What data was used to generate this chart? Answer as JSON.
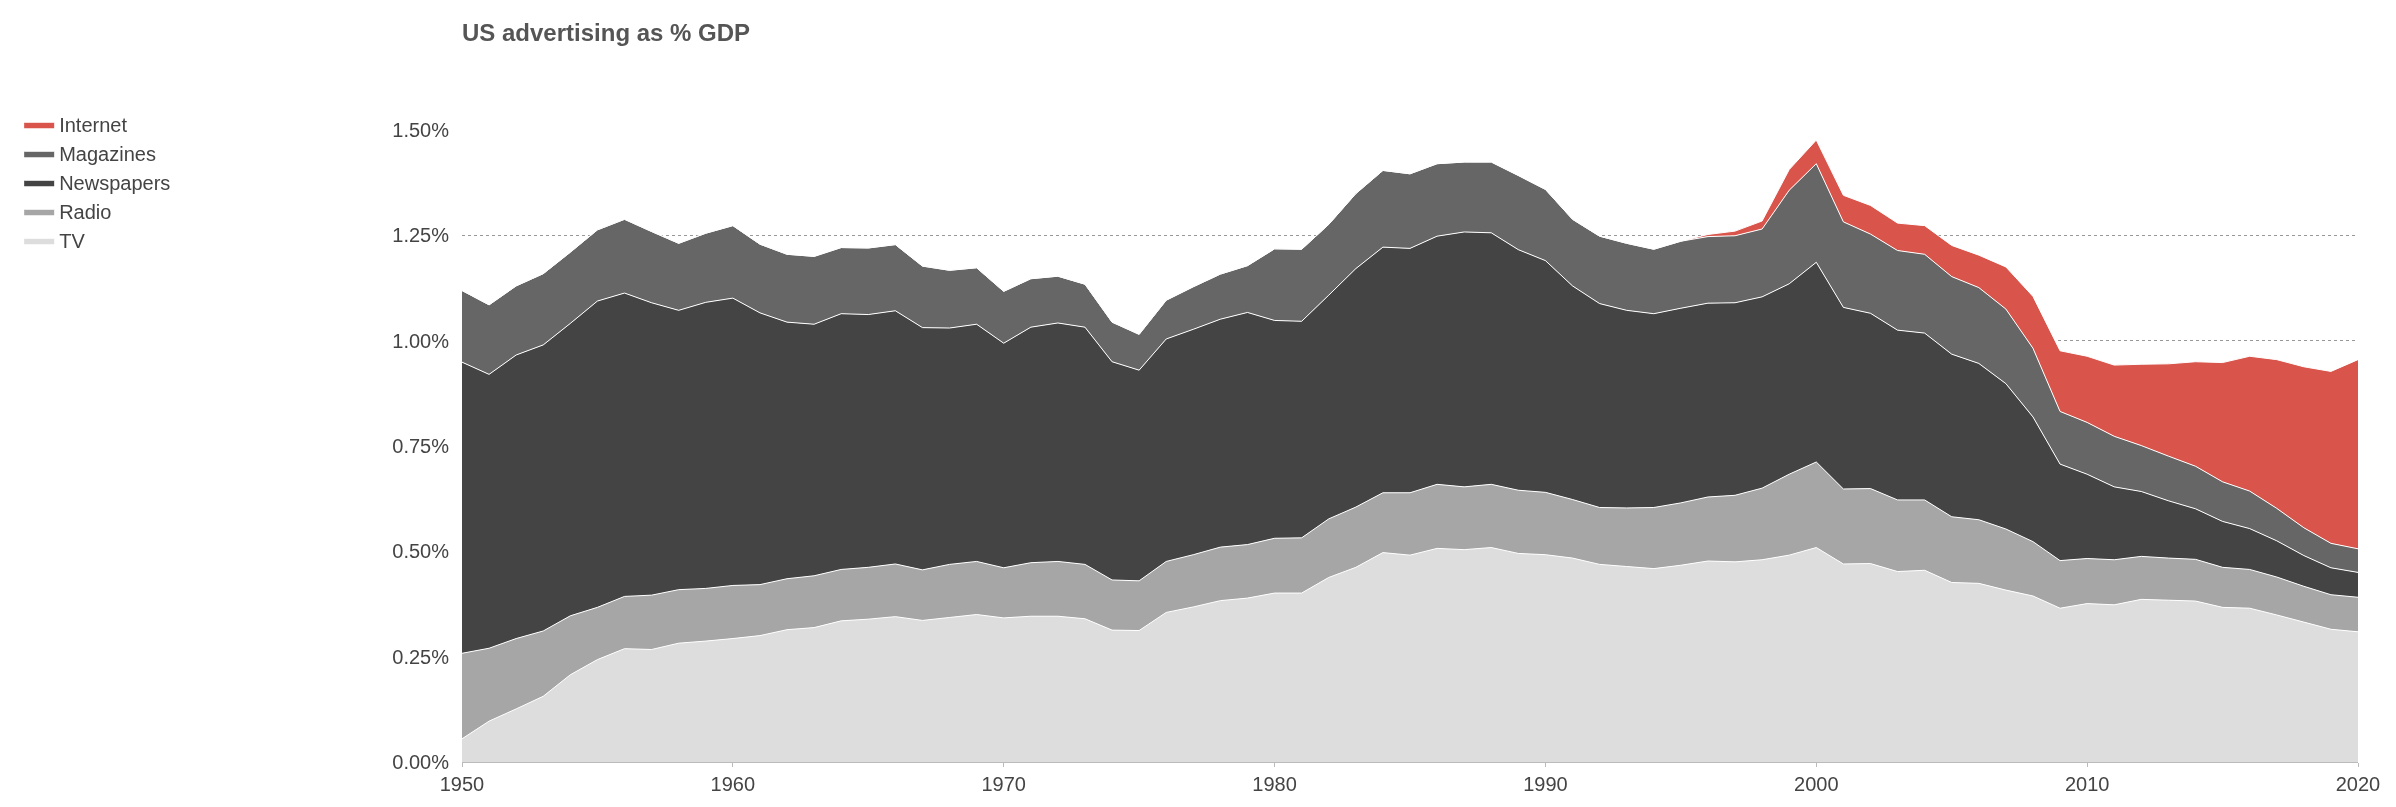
{
  "chart_data": {
    "type": "area",
    "stacked": true,
    "title": "US advertising as % GDP",
    "x": [
      1950,
      1951,
      1952,
      1953,
      1954,
      1955,
      1956,
      1957,
      1958,
      1959,
      1960,
      1961,
      1962,
      1963,
      1964,
      1965,
      1966,
      1967,
      1968,
      1969,
      1970,
      1971,
      1972,
      1973,
      1974,
      1975,
      1976,
      1977,
      1978,
      1979,
      1980,
      1981,
      1982,
      1983,
      1984,
      1985,
      1986,
      1987,
      1988,
      1989,
      1990,
      1991,
      1992,
      1993,
      1994,
      1995,
      1996,
      1997,
      1998,
      1999,
      2000,
      2001,
      2002,
      2003,
      2004,
      2005,
      2006,
      2007,
      2008,
      2009,
      2010,
      2011,
      2012,
      2013,
      2014,
      2015,
      2016,
      2017,
      2018,
      2019,
      2020
    ],
    "series": [
      {
        "name": "TV",
        "color": "#dddddd",
        "values": [
          0.055,
          0.097,
          0.126,
          0.156,
          0.207,
          0.243,
          0.269,
          0.267,
          0.282,
          0.287,
          0.293,
          0.3,
          0.314,
          0.319,
          0.335,
          0.339,
          0.345,
          0.336,
          0.343,
          0.35,
          0.342,
          0.346,
          0.346,
          0.34,
          0.313,
          0.312,
          0.355,
          0.368,
          0.383,
          0.389,
          0.401,
          0.401,
          0.438,
          0.462,
          0.497,
          0.491,
          0.507,
          0.504,
          0.509,
          0.495,
          0.492,
          0.484,
          0.469,
          0.464,
          0.459,
          0.467,
          0.477,
          0.475,
          0.48,
          0.491,
          0.509,
          0.47,
          0.471,
          0.452,
          0.455,
          0.426,
          0.424,
          0.408,
          0.394,
          0.365,
          0.376,
          0.373,
          0.386,
          0.384,
          0.382,
          0.367,
          0.365,
          0.349,
          0.332,
          0.315,
          0.309
        ]
      },
      {
        "name": "Radio",
        "color": "#a6a6a6",
        "values": [
          0.203,
          0.173,
          0.167,
          0.155,
          0.14,
          0.124,
          0.124,
          0.129,
          0.127,
          0.125,
          0.126,
          0.121,
          0.121,
          0.123,
          0.122,
          0.123,
          0.125,
          0.12,
          0.126,
          0.126,
          0.119,
          0.127,
          0.13,
          0.129,
          0.119,
          0.118,
          0.121,
          0.124,
          0.127,
          0.127,
          0.13,
          0.131,
          0.139,
          0.143,
          0.142,
          0.148,
          0.152,
          0.149,
          0.15,
          0.15,
          0.148,
          0.139,
          0.135,
          0.139,
          0.145,
          0.148,
          0.152,
          0.158,
          0.17,
          0.192,
          0.203,
          0.178,
          0.178,
          0.17,
          0.167,
          0.156,
          0.151,
          0.145,
          0.129,
          0.113,
          0.107,
          0.107,
          0.102,
          0.1,
          0.099,
          0.095,
          0.092,
          0.09,
          0.085,
          0.082,
          0.082
        ]
      },
      {
        "name": "Newspapers",
        "color": "#444444",
        "values": [
          0.691,
          0.65,
          0.673,
          0.679,
          0.694,
          0.727,
          0.72,
          0.694,
          0.663,
          0.679,
          0.682,
          0.645,
          0.609,
          0.597,
          0.607,
          0.6,
          0.601,
          0.575,
          0.561,
          0.563,
          0.533,
          0.559,
          0.566,
          0.563,
          0.518,
          0.5,
          0.528,
          0.535,
          0.541,
          0.551,
          0.517,
          0.514,
          0.531,
          0.566,
          0.583,
          0.58,
          0.589,
          0.605,
          0.597,
          0.571,
          0.55,
          0.507,
          0.484,
          0.469,
          0.46,
          0.462,
          0.46,
          0.457,
          0.454,
          0.452,
          0.474,
          0.431,
          0.416,
          0.403,
          0.396,
          0.386,
          0.371,
          0.345,
          0.296,
          0.229,
          0.2,
          0.173,
          0.154,
          0.136,
          0.12,
          0.109,
          0.097,
          0.086,
          0.073,
          0.064,
          0.059
        ]
      },
      {
        "name": "Magazines",
        "color": "#666666",
        "values": [
          0.17,
          0.165,
          0.164,
          0.169,
          0.169,
          0.169,
          0.175,
          0.169,
          0.159,
          0.164,
          0.172,
          0.163,
          0.161,
          0.161,
          0.157,
          0.158,
          0.157,
          0.146,
          0.137,
          0.134,
          0.123,
          0.115,
          0.111,
          0.102,
          0.094,
          0.085,
          0.092,
          0.101,
          0.107,
          0.111,
          0.17,
          0.171,
          0.168,
          0.178,
          0.182,
          0.177,
          0.172,
          0.166,
          0.168,
          0.176,
          0.169,
          0.158,
          0.16,
          0.159,
          0.153,
          0.159,
          0.158,
          0.159,
          0.161,
          0.222,
          0.234,
          0.203,
          0.188,
          0.189,
          0.187,
          0.184,
          0.18,
          0.177,
          0.163,
          0.125,
          0.123,
          0.12,
          0.109,
          0.106,
          0.101,
          0.094,
          0.089,
          0.077,
          0.066,
          0.058,
          0.056
        ]
      },
      {
        "name": "Internet",
        "color": "#d9544a",
        "values": [
          0,
          0,
          0,
          0,
          0,
          0,
          0,
          0,
          0,
          0,
          0,
          0,
          0,
          0,
          0,
          0,
          0,
          0,
          0,
          0,
          0,
          0,
          0,
          0,
          0,
          0,
          0,
          0,
          0,
          0,
          0,
          0,
          0,
          0,
          0,
          0,
          0,
          0,
          0,
          0,
          0,
          0,
          0,
          0,
          0,
          0,
          0.005,
          0.011,
          0.019,
          0.049,
          0.056,
          0.063,
          0.068,
          0.065,
          0.068,
          0.074,
          0.077,
          0.1,
          0.123,
          0.144,
          0.157,
          0.169,
          0.193,
          0.219,
          0.248,
          0.283,
          0.32,
          0.353,
          0.382,
          0.408,
          0.449
        ]
      }
    ],
    "xlim": [
      1950,
      2020
    ],
    "xticks": [
      1950,
      1960,
      1970,
      1980,
      1990,
      2000,
      2010,
      2020
    ],
    "ylim": [
      0,
      1.5
    ],
    "yticks": [
      {
        "value": 0,
        "label": "0.00%"
      },
      {
        "value": 0.25,
        "label": "0.25%"
      },
      {
        "value": 0.5,
        "label": "0.50%"
      },
      {
        "value": 0.75,
        "label": "0.75%"
      },
      {
        "value": 1.0,
        "label": "1.00%"
      },
      {
        "value": 1.25,
        "label": "1.25%"
      },
      {
        "value": 1.5,
        "label": "1.50%"
      }
    ],
    "grid": "y",
    "legend": "top left"
  }
}
